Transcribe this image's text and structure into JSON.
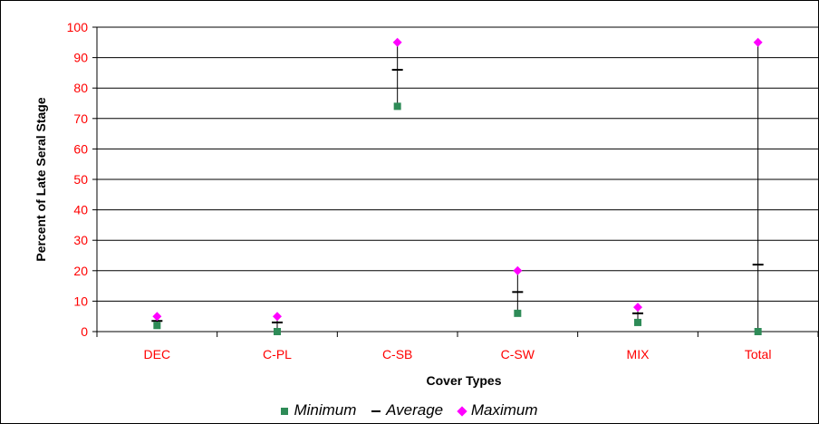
{
  "chart_data": {
    "type": "scatter",
    "categories": [
      "DEC",
      "C-PL",
      "C-SB",
      "C-SW",
      "MIX",
      "Total"
    ],
    "series": [
      {
        "name": "Minimum",
        "values": [
          2,
          0,
          74,
          6,
          3,
          0
        ],
        "color": "#2e8b57",
        "marker": "square"
      },
      {
        "name": "Average",
        "values": [
          3.5,
          3,
          86,
          13,
          6,
          22
        ],
        "color": "#000000",
        "marker": "dash"
      },
      {
        "name": "Maximum",
        "values": [
          5,
          5,
          95,
          20,
          8,
          95
        ],
        "color": "#ff00ff",
        "marker": "diamond"
      }
    ],
    "xlabel": "Cover Types",
    "ylabel": "Percent of Late Seral Stage",
    "ylim": [
      0,
      100
    ],
    "yticks": [
      0,
      10,
      20,
      30,
      40,
      50,
      60,
      70,
      80,
      90,
      100
    ],
    "grid": true,
    "legend_position": "bottom",
    "tick_label_color": "#ff0000"
  }
}
